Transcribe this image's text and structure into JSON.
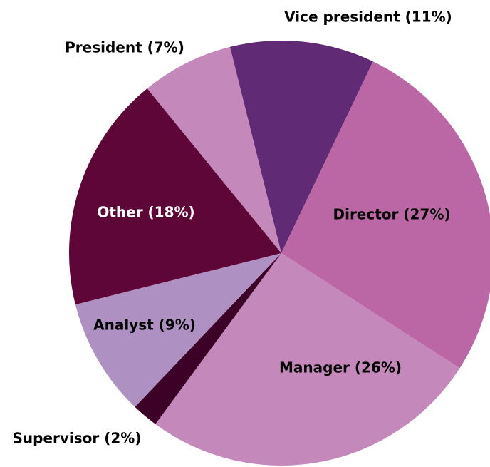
{
  "chart_data": {
    "type": "pie",
    "categories": [
      "Vice president (11%)",
      "Director (27%)",
      "Manager (26%)",
      "Supervisor (2%)",
      "Analyst (9%)",
      "Other (18%)",
      "President (7%)"
    ],
    "values": [
      11,
      27,
      26,
      2,
      9,
      18,
      7
    ],
    "colors": [
      "#612a74",
      "#bb67a5",
      "#c488bb",
      "#3d0026",
      "#ae90c2",
      "#5f0638",
      "#c488bb"
    ]
  }
}
